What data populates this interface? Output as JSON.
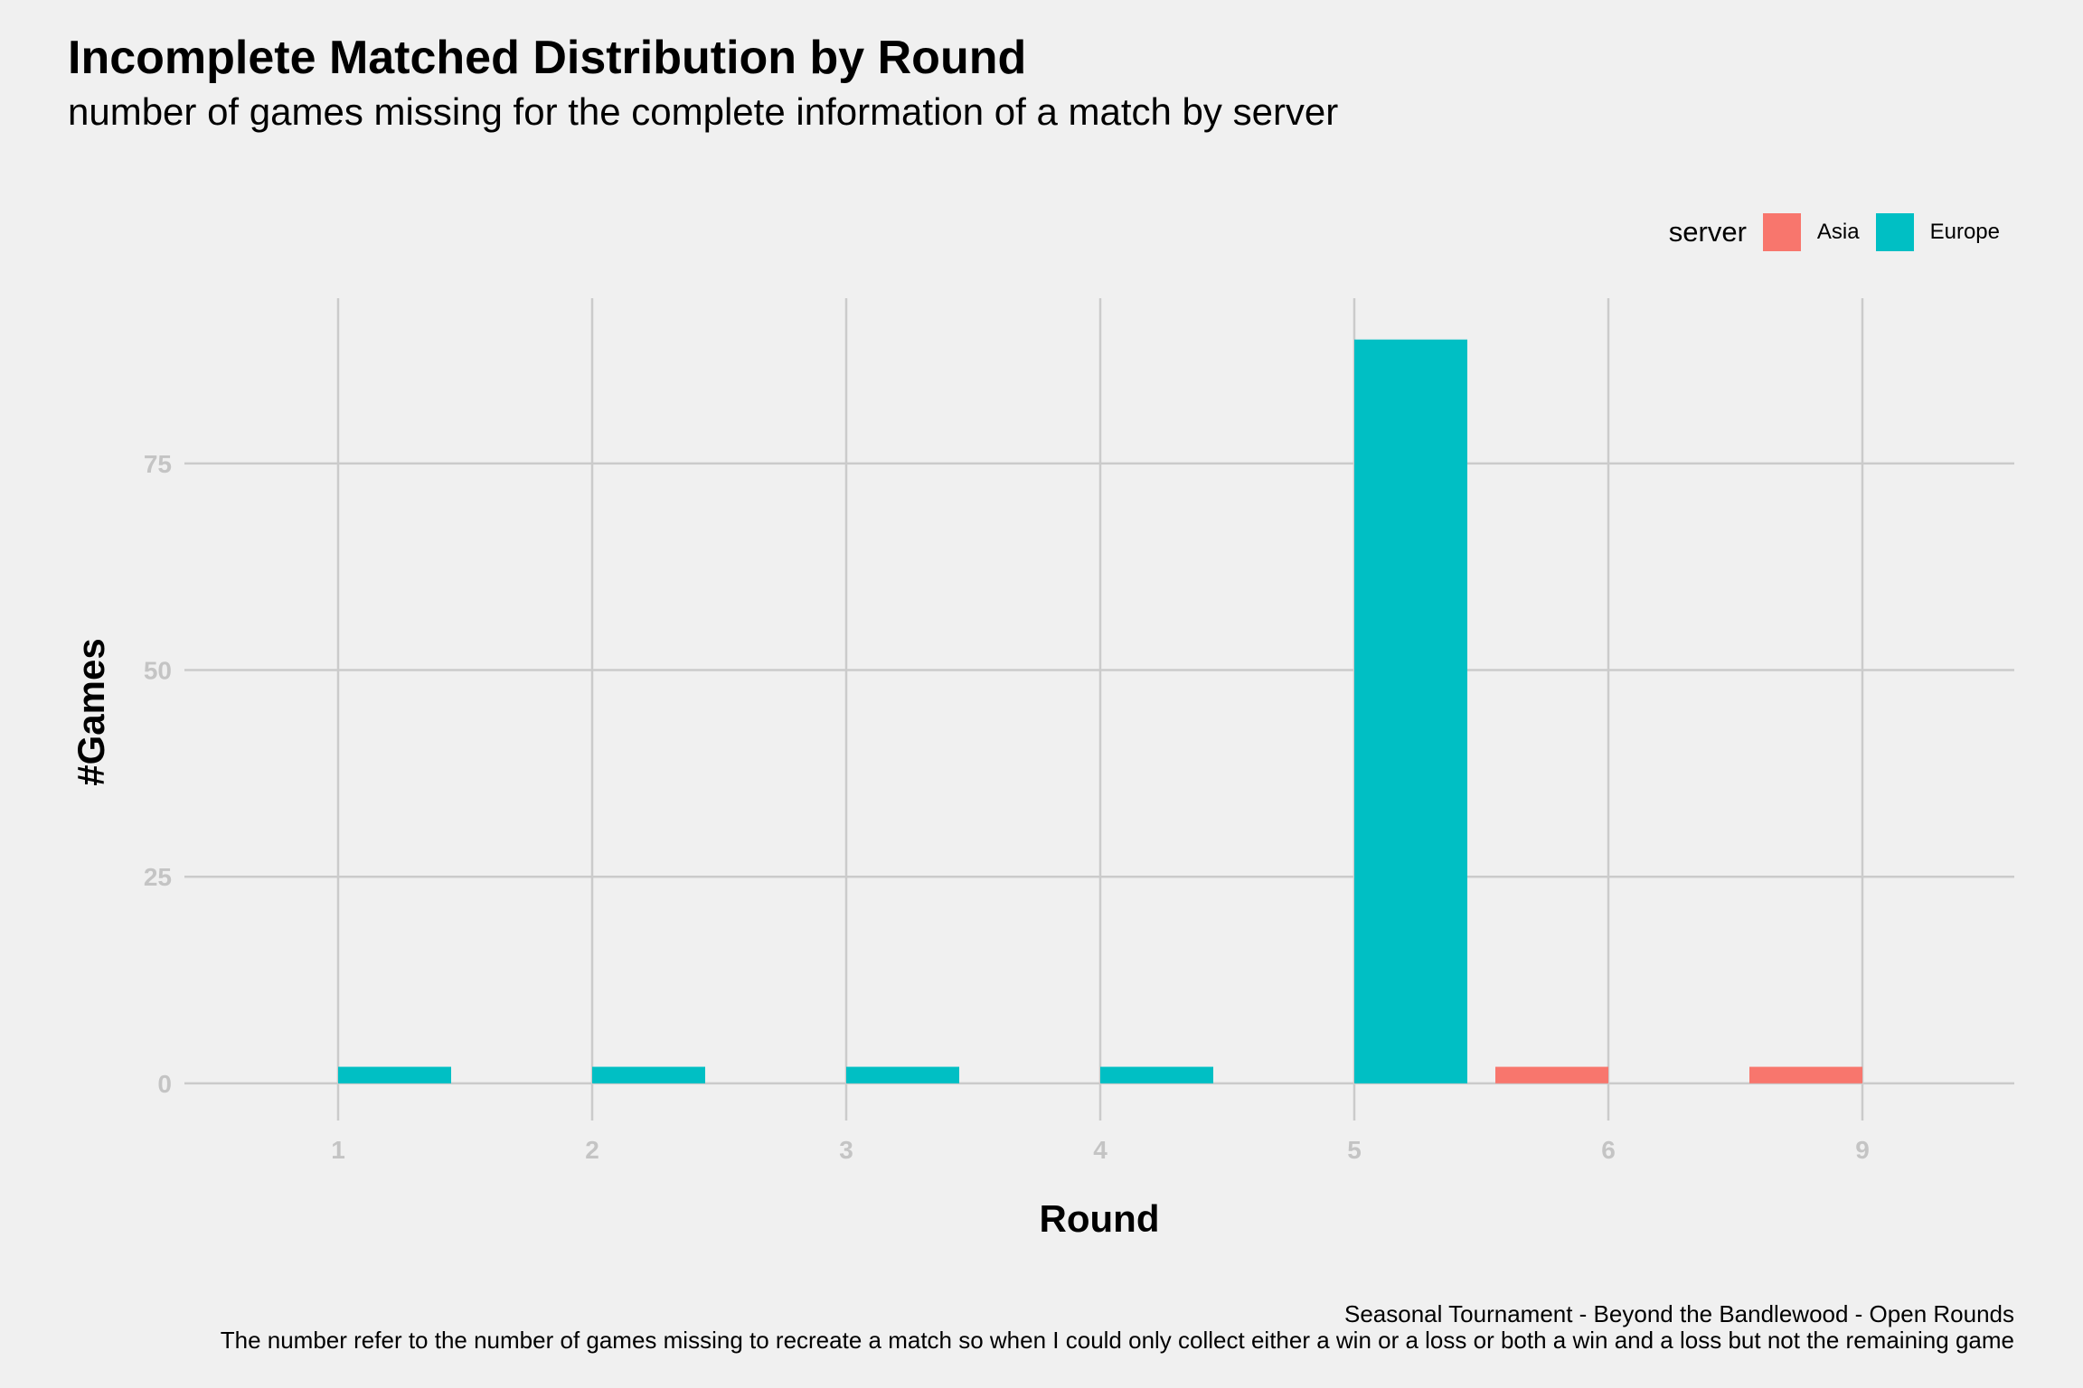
{
  "chart_data": {
    "type": "bar",
    "title": "Incomplete Matched Distribution by Round",
    "subtitle": "number of games missing for the complete information of a match by server",
    "xlabel": "Round",
    "ylabel": "#Games",
    "categories": [
      "1",
      "2",
      "3",
      "4",
      "5",
      "6",
      "9"
    ],
    "series": [
      {
        "name": "Asia",
        "color": "#f8766d",
        "values": [
          0,
          0,
          0,
          0,
          0,
          2,
          2
        ]
      },
      {
        "name": "Europe",
        "color": "#00bfc4",
        "values": [
          2,
          2,
          2,
          2,
          90,
          0,
          0
        ]
      }
    ],
    "yticks": [
      0,
      25,
      50,
      75
    ],
    "ylim": [
      -4.5,
      95
    ],
    "grid": true,
    "legend_title": "server",
    "legend_position": "top-right",
    "caption_line1": "Seasonal Tournament - Beyond the Bandlewood - Open Rounds",
    "caption_line2": "The number refer to the number of games missing to recreate a match so when I could only collect either a win or a loss or both a win and a loss but not the remaining game"
  }
}
